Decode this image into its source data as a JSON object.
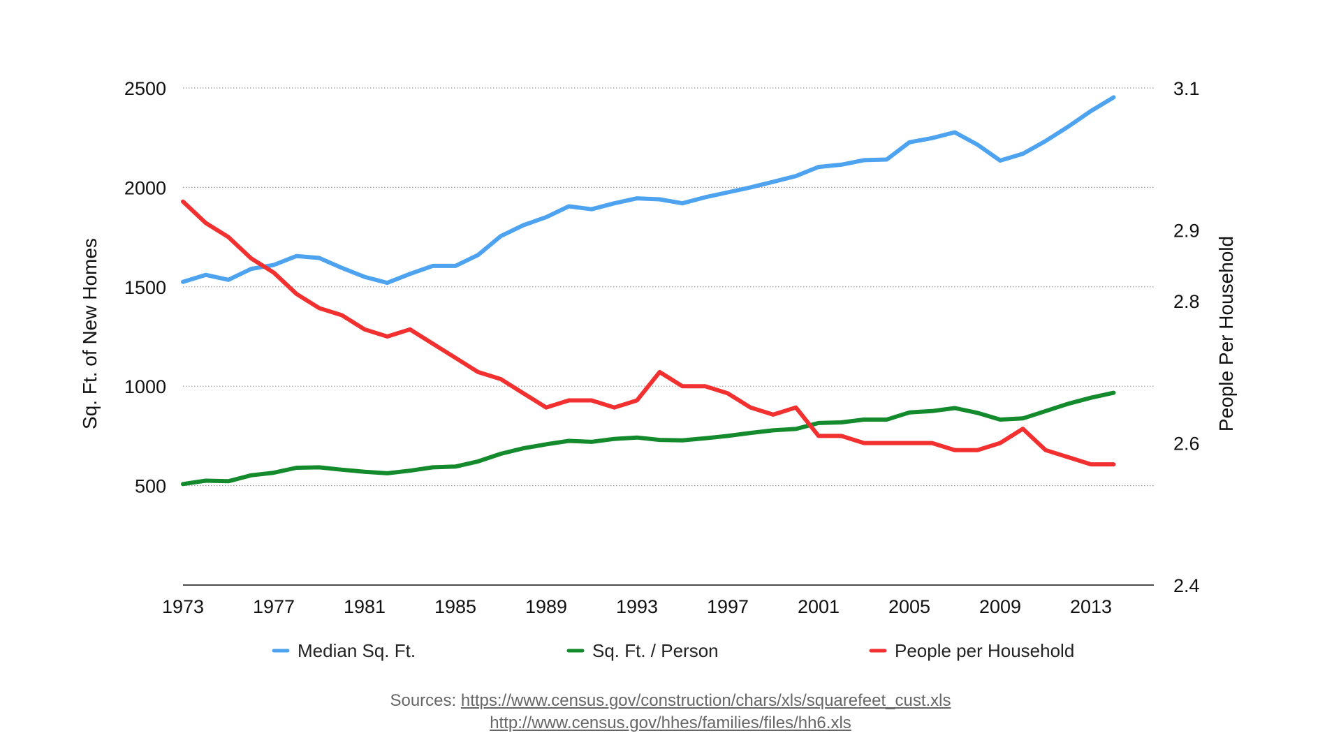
{
  "chart_data": {
    "type": "line",
    "x": [
      1973,
      1974,
      1975,
      1976,
      1977,
      1978,
      1979,
      1980,
      1981,
      1982,
      1983,
      1984,
      1985,
      1986,
      1987,
      1988,
      1989,
      1990,
      1991,
      1992,
      1993,
      1994,
      1995,
      1996,
      1997,
      1998,
      1999,
      2000,
      2001,
      2002,
      2003,
      2004,
      2005,
      2006,
      2007,
      2008,
      2009,
      2010,
      2011,
      2012,
      2013,
      2014
    ],
    "x_ticks": [
      "1973",
      "1977",
      "1981",
      "1985",
      "1989",
      "1993",
      "1997",
      "2001",
      "2005",
      "2009",
      "2013"
    ],
    "ylabel": "Sq. Ft. of New Homes",
    "y2label": "People Per Household",
    "y_ticks": [
      "500",
      "1000",
      "1500",
      "2000",
      "2500"
    ],
    "y2_ticks": [
      "2.4",
      "2.6",
      "2.8",
      "2.9",
      "3.1"
    ],
    "ylim": [
      0,
      2500
    ],
    "y2lim": [
      2.4,
      3.1
    ],
    "grid": true,
    "legend_position": "bottom",
    "series": [
      {
        "name": "Median Sq. Ft.",
        "axis": "left",
        "color": "#4da3f0",
        "values": [
          1525,
          1560,
          1535,
          1590,
          1610,
          1655,
          1645,
          1595,
          1550,
          1520,
          1565,
          1605,
          1605,
          1660,
          1755,
          1810,
          1850,
          1905,
          1890,
          1920,
          1945,
          1940,
          1920,
          1950,
          1975,
          2000,
          2028,
          2057,
          2103,
          2114,
          2137,
          2140,
          2227,
          2248,
          2277,
          2215,
          2135,
          2169,
          2233,
          2306,
          2384,
          2453
        ]
      },
      {
        "name": "Sq. Ft. / Person",
        "axis": "left",
        "color": "#138a2c",
        "values": [
          508,
          525,
          522,
          552,
          565,
          590,
          592,
          580,
          570,
          562,
          575,
          592,
          596,
          622,
          660,
          688,
          708,
          725,
          720,
          735,
          742,
          730,
          728,
          738,
          750,
          765,
          778,
          785,
          815,
          818,
          832,
          832,
          868,
          875,
          890,
          866,
          832,
          838,
          875,
          912,
          942,
          967
        ]
      },
      {
        "name": "People per Household",
        "axis": "right",
        "color": "#f23030",
        "values": [
          2.94,
          2.91,
          2.89,
          2.86,
          2.84,
          2.81,
          2.79,
          2.78,
          2.76,
          2.75,
          2.76,
          2.74,
          2.72,
          2.7,
          2.69,
          2.67,
          2.65,
          2.66,
          2.66,
          2.65,
          2.66,
          2.7,
          2.68,
          2.68,
          2.67,
          2.65,
          2.64,
          2.65,
          2.61,
          2.61,
          2.6,
          2.6,
          2.6,
          2.6,
          2.59,
          2.59,
          2.6,
          2.62,
          2.59,
          2.58,
          2.57,
          2.57
        ]
      }
    ]
  },
  "sources": {
    "prefix": "Sources: ",
    "link1": "https://www.census.gov/construction/chars/xls/squarefeet_cust.xls",
    "link2": "http://www.census.gov/hhes/families/files/hh6.xls"
  }
}
